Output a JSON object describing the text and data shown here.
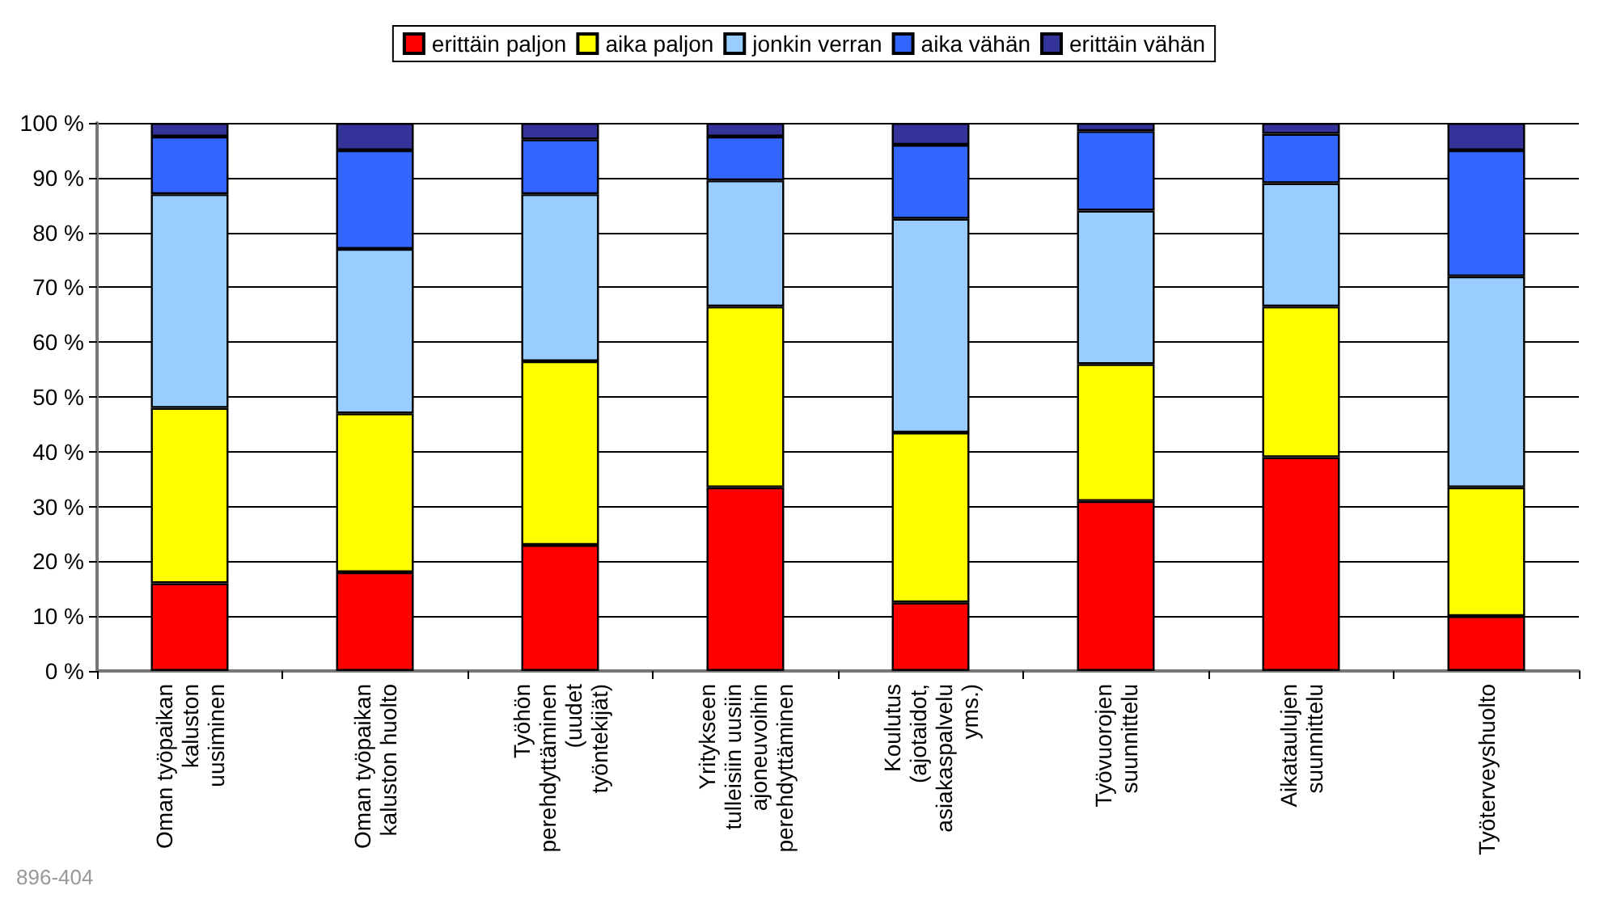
{
  "chart_data": {
    "type": "bar",
    "stacked": true,
    "categories": [
      "Oman työpaikan\nkaluston\nuusiminen",
      "Oman työpaikan\nkaluston huolto",
      "Työhön\nperehdyttäminen\n(uudet\ntyöntekijät)",
      "Yritykseen\ntulleisiin uusiin\najoneuvoihin\nperehdyttäminen",
      "Koulutus\n(ajotaidot,\nasiakaspalvelu\nyms.)",
      "Työvuorojen\nsuunnittelu",
      "Aikataulujen\nsuunnittelu",
      "Työterveyshuolto"
    ],
    "series": [
      {
        "name": "erittäin paljon",
        "color": "#ff0000",
        "values": [
          16,
          18,
          23,
          33.5,
          12.5,
          31,
          39,
          10
        ]
      },
      {
        "name": "aika paljon",
        "color": "#ffff00",
        "values": [
          32,
          29,
          33.5,
          33,
          31,
          25,
          27.5,
          23.5
        ]
      },
      {
        "name": "jonkin verran",
        "color": "#99ccff",
        "values": [
          39,
          30,
          30.5,
          23,
          39,
          28,
          22.5,
          38.5
        ]
      },
      {
        "name": "aika vähän",
        "color": "#3366ff",
        "values": [
          10.5,
          18,
          10,
          8,
          13.5,
          14.5,
          9,
          23
        ]
      },
      {
        "name": "erittäin vähän",
        "color": "#333399",
        "values": [
          2.5,
          5,
          3,
          2.5,
          4,
          1.5,
          2,
          5
        ]
      }
    ],
    "ylim": [
      0,
      100
    ],
    "yticks": [
      {
        "value": 0,
        "label": "0 %"
      },
      {
        "value": 10,
        "label": "10 %"
      },
      {
        "value": 20,
        "label": "20 %"
      },
      {
        "value": 30,
        "label": "30 %"
      },
      {
        "value": 40,
        "label": "40 %"
      },
      {
        "value": 50,
        "label": "50 %"
      },
      {
        "value": 60,
        "label": "60 %"
      },
      {
        "value": 70,
        "label": "70 %"
      },
      {
        "value": 80,
        "label": "80 %"
      },
      {
        "value": 90,
        "label": "90 %"
      },
      {
        "value": 100,
        "label": "100 %"
      }
    ],
    "grid": "y",
    "legend": "top",
    "annotations": [
      "896-404"
    ]
  }
}
